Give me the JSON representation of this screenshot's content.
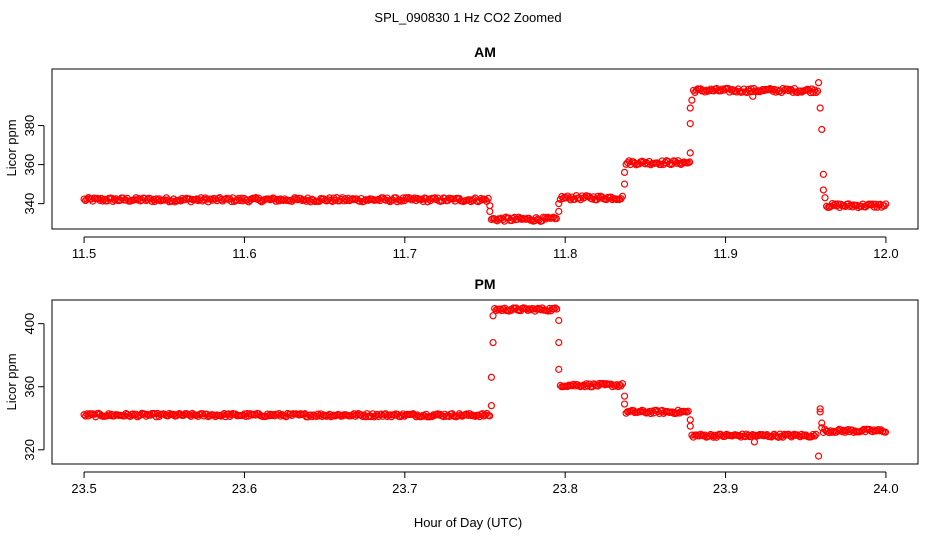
{
  "title": "SPL_090830  1 Hz CO2 Zoomed",
  "xlabel": "Hour of Day (UTC)",
  "colors": {
    "points": "#ff0000",
    "axis": "#000000",
    "background": "#ffffff"
  },
  "chart_data": [
    {
      "type": "scatter",
      "title": "AM",
      "ylabel": "Licor ppm",
      "xlim": [
        11.48,
        12.02
      ],
      "ylim": [
        327,
        409
      ],
      "xticks": [
        11.5,
        11.6,
        11.7,
        11.8,
        11.9,
        12.0
      ],
      "xtick_labels": [
        "11.5",
        "11.6",
        "11.7",
        "11.8",
        "11.9",
        "12.0"
      ],
      "yticks": [
        340,
        360,
        380
      ],
      "ytick_labels": [
        "340",
        "360",
        "380"
      ],
      "segments": [
        {
          "x_start": 11.5,
          "x_end": 11.752,
          "y": 342
        },
        {
          "x_start": 11.754,
          "x_end": 11.795,
          "y": 332
        },
        {
          "x_start": 11.797,
          "x_end": 11.836,
          "y": 343
        },
        {
          "x_start": 11.838,
          "x_end": 11.878,
          "y": 361
        },
        {
          "x_start": 11.88,
          "x_end": 11.958,
          "y": 398
        },
        {
          "x_start": 11.963,
          "x_end": 12.0,
          "y": 339
        }
      ],
      "transition_points": [
        {
          "x": 11.753,
          "y": 339
        },
        {
          "x": 11.753,
          "y": 336
        },
        {
          "x": 11.796,
          "y": 336
        },
        {
          "x": 11.796,
          "y": 340
        },
        {
          "x": 11.837,
          "y": 350
        },
        {
          "x": 11.837,
          "y": 356
        },
        {
          "x": 11.878,
          "y": 366
        },
        {
          "x": 11.878,
          "y": 381
        },
        {
          "x": 11.878,
          "y": 389
        },
        {
          "x": 11.879,
          "y": 393
        },
        {
          "x": 11.958,
          "y": 402
        },
        {
          "x": 11.959,
          "y": 389
        },
        {
          "x": 11.96,
          "y": 378
        },
        {
          "x": 11.961,
          "y": 355
        },
        {
          "x": 11.961,
          "y": 347
        },
        {
          "x": 11.962,
          "y": 343
        },
        {
          "x": 11.917,
          "y": 395
        }
      ]
    },
    {
      "type": "scatter",
      "title": "PM",
      "ylabel": "Licor ppm",
      "xlim": [
        23.48,
        24.02
      ],
      "ylim": [
        311,
        415
      ],
      "xticks": [
        23.5,
        23.6,
        23.7,
        23.8,
        23.9,
        24.0
      ],
      "xtick_labels": [
        "23.5",
        "23.6",
        "23.7",
        "23.8",
        "23.9",
        "24.0"
      ],
      "yticks": [
        320,
        360,
        400
      ],
      "ytick_labels": [
        "320",
        "360",
        "400"
      ],
      "segments": [
        {
          "x_start": 23.5,
          "x_end": 23.753,
          "y": 342
        },
        {
          "x_start": 23.756,
          "x_end": 23.795,
          "y": 409
        },
        {
          "x_start": 23.797,
          "x_end": 23.836,
          "y": 361
        },
        {
          "x_start": 23.838,
          "x_end": 23.877,
          "y": 344
        },
        {
          "x_start": 23.879,
          "x_end": 23.957,
          "y": 329
        },
        {
          "x_start": 23.961,
          "x_end": 24.0,
          "y": 332
        }
      ],
      "transition_points": [
        {
          "x": 23.754,
          "y": 348
        },
        {
          "x": 23.754,
          "y": 366
        },
        {
          "x": 23.755,
          "y": 388
        },
        {
          "x": 23.755,
          "y": 405
        },
        {
          "x": 23.796,
          "y": 402
        },
        {
          "x": 23.796,
          "y": 388
        },
        {
          "x": 23.796,
          "y": 371
        },
        {
          "x": 23.837,
          "y": 354
        },
        {
          "x": 23.837,
          "y": 349
        },
        {
          "x": 23.878,
          "y": 339
        },
        {
          "x": 23.878,
          "y": 335
        },
        {
          "x": 23.958,
          "y": 316
        },
        {
          "x": 23.959,
          "y": 346
        },
        {
          "x": 23.959,
          "y": 344
        },
        {
          "x": 23.96,
          "y": 337
        },
        {
          "x": 23.96,
          "y": 334
        },
        {
          "x": 23.918,
          "y": 325
        }
      ]
    }
  ]
}
